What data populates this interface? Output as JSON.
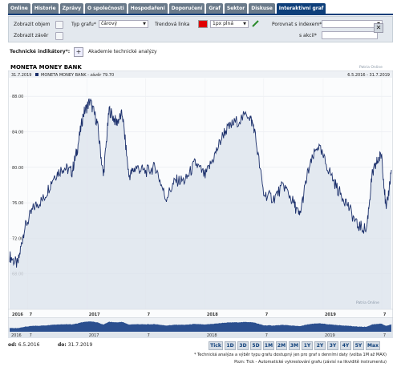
{
  "tabs": [
    "Online",
    "Historie",
    "Zprávy",
    "O společnosti",
    "Hospodaření",
    "Doporučení",
    "Graf",
    "Sektor",
    "Diskuse",
    "Interaktivní graf"
  ],
  "active_tab": 9,
  "controls": {
    "show_volume": "Zobrazit objem",
    "show_close": "Zobrazit závěr",
    "chart_type_label": "Typ grafu*",
    "chart_type_value": "čárový",
    "trend_line_label": "Trendová linka",
    "trend_line_color": "#e00000",
    "trend_line_width": "1px plná",
    "compare_index_label": "Porovnat s indexem*",
    "compare_stock_label": "s akcií*"
  },
  "tech": {
    "label": "Technické indikátory*:",
    "plus": "+",
    "academy": "Akademie technické analýzy"
  },
  "chart": {
    "title": "MONETA MONEY BANK",
    "source": "Patria Online",
    "legend_date": "31.7.2019",
    "legend_text": "MONETA MONEY BANK - závěr 79.70",
    "range_text": "6.5.2016 - 31.7.2019",
    "watermark": "Patria Online"
  },
  "colors": {
    "line": "#1b2f6b",
    "fill": "#dde3ec",
    "tab_active": "#0e3f7a"
  },
  "chart_data": {
    "type": "area",
    "title": "MONETA MONEY BANK",
    "series": [
      {
        "name": "MONETA MONEY BANK - závěr",
        "x": [
          "2016-05-06",
          "2016-05-31",
          "2016-06-20",
          "2016-07-20",
          "2016-08-20",
          "2016-09-20",
          "2016-10-20",
          "2016-11-15",
          "2016-12-01",
          "2016-12-20",
          "2017-01-10",
          "2017-02-01",
          "2017-02-20",
          "2017-03-10",
          "2017-04-01",
          "2017-04-20",
          "2017-05-10",
          "2017-06-01",
          "2017-07-01",
          "2017-08-01",
          "2017-09-01",
          "2017-10-01",
          "2017-11-01",
          "2017-12-01",
          "2018-01-01",
          "2018-02-01",
          "2018-03-01",
          "2018-04-01",
          "2018-05-15",
          "2018-06-01",
          "2018-07-01",
          "2018-08-01",
          "2018-09-01",
          "2018-10-01",
          "2018-10-20",
          "2018-11-15",
          "2018-12-15",
          "2019-01-15",
          "2019-02-15",
          "2019-03-15",
          "2019-04-15",
          "2019-05-15",
          "2019-06-01",
          "2019-06-15",
          "2019-07-01",
          "2019-07-15",
          "2019-07-31"
        ],
        "y": [
          70.0,
          69.0,
          73.0,
          75.5,
          76.5,
          79.0,
          80.0,
          79.5,
          82.0,
          86.0,
          87.5,
          85.0,
          79.0,
          86.5,
          85.0,
          86.0,
          79.0,
          80.0,
          79.5,
          80.0,
          76.5,
          78.5,
          78.5,
          80.5,
          79.0,
          81.5,
          84.0,
          85.0,
          86.0,
          84.5,
          77.0,
          76.5,
          78.0,
          76.0,
          74.5,
          79.5,
          82.5,
          80.0,
          77.5,
          76.0,
          73.5,
          73.0,
          79.0,
          80.5,
          81.5,
          75.0,
          79.7
        ]
      }
    ],
    "ylim": [
      64,
      90
    ],
    "yticks": [
      "68.00",
      "72.00",
      "76.00",
      "80.00",
      "84.00",
      "88.00"
    ],
    "xticks": [
      "2016",
      "7",
      "2017",
      "7",
      "2018",
      "7",
      "2019",
      "7"
    ],
    "grid": true
  },
  "navigator": {
    "x": [
      "2016",
      "7",
      "2017",
      "7",
      "2018",
      "7",
      "2019",
      "7"
    ]
  },
  "periods": [
    "Tick",
    "1D",
    "3D",
    "5D",
    "1M",
    "2M",
    "3M",
    "1Y",
    "2Y",
    "3Y",
    "4Y",
    "5Y",
    "Max"
  ],
  "dates": {
    "from_label": "od:",
    "from_value": "6.5.2016",
    "to_label": "do:",
    "to_value": "31.7.2019"
  },
  "notes": [
    "* Technická analýza a výběr typu grafu dostupný jen pro graf s denními daty (volba 1M až MAX)",
    "Pozn: Tick - Automatické vykreslování grafu (závisí na likviditě instrumentu)"
  ]
}
